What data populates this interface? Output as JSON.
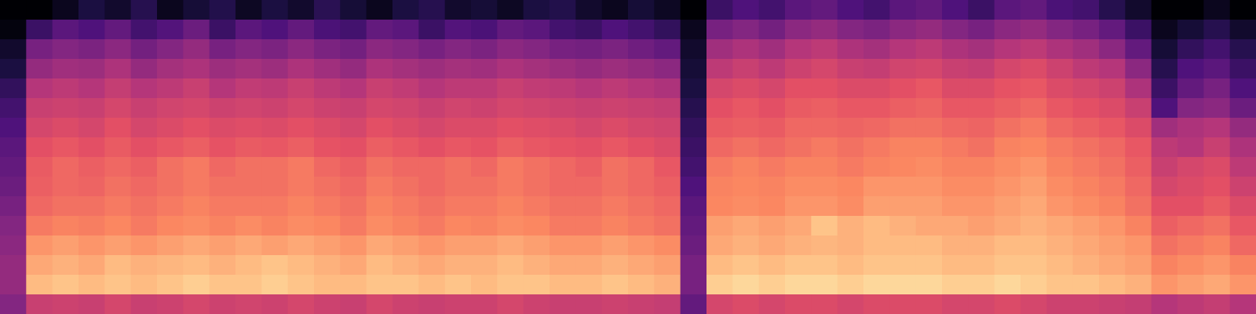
{
  "chart_data": {
    "type": "heatmap",
    "tick_labels": false,
    "zlim": [
      0,
      100
    ],
    "cells": [
      [
        0,
        0,
        5,
        12,
        8,
        15,
        5,
        10,
        14,
        6,
        12,
        8,
        16,
        10,
        5,
        12,
        15,
        8,
        10,
        6,
        12,
        14,
        8,
        5,
        10,
        6,
        0,
        20,
        25,
        22,
        28,
        30,
        25,
        22,
        28,
        30,
        25,
        20,
        28,
        30,
        24,
        22,
        15,
        8,
        0,
        0,
        5,
        0
      ],
      [
        2,
        20,
        28,
        25,
        30,
        22,
        26,
        32,
        20,
        28,
        25,
        30,
        24,
        22,
        30,
        28,
        20,
        26,
        24,
        30,
        28,
        22,
        20,
        25,
        22,
        18,
        5,
        35,
        38,
        34,
        40,
        42,
        38,
        36,
        40,
        42,
        38,
        35,
        40,
        42,
        38,
        35,
        30,
        20,
        5,
        10,
        15,
        8
      ],
      [
        8,
        35,
        38,
        36,
        40,
        34,
        38,
        42,
        35,
        38,
        36,
        40,
        36,
        34,
        40,
        38,
        35,
        38,
        36,
        40,
        38,
        35,
        34,
        36,
        33,
        30,
        8,
        45,
        48,
        45,
        50,
        52,
        48,
        46,
        50,
        52,
        48,
        46,
        50,
        52,
        48,
        45,
        40,
        30,
        10,
        18,
        22,
        15
      ],
      [
        12,
        42,
        45,
        44,
        48,
        42,
        46,
        48,
        44,
        46,
        44,
        48,
        45,
        42,
        48,
        46,
        44,
        46,
        45,
        48,
        46,
        44,
        42,
        44,
        42,
        40,
        10,
        52,
        55,
        52,
        56,
        58,
        55,
        54,
        57,
        58,
        55,
        54,
        58,
        60,
        56,
        52,
        50,
        40,
        15,
        25,
        28,
        20
      ],
      [
        18,
        50,
        52,
        50,
        54,
        50,
        52,
        55,
        50,
        53,
        52,
        55,
        52,
        50,
        55,
        53,
        50,
        52,
        52,
        55,
        53,
        52,
        50,
        52,
        50,
        48,
        12,
        58,
        60,
        58,
        62,
        62,
        60,
        60,
        62,
        64,
        60,
        60,
        63,
        64,
        60,
        58,
        56,
        48,
        20,
        30,
        35,
        25
      ],
      [
        22,
        55,
        56,
        55,
        58,
        55,
        57,
        58,
        56,
        57,
        56,
        58,
        56,
        55,
        58,
        57,
        55,
        57,
        56,
        58,
        57,
        56,
        55,
        56,
        55,
        54,
        15,
        62,
        64,
        62,
        65,
        66,
        64,
        64,
        66,
        67,
        64,
        64,
        66,
        68,
        64,
        62,
        60,
        55,
        25,
        38,
        40,
        32
      ],
      [
        25,
        58,
        60,
        58,
        62,
        58,
        60,
        62,
        60,
        61,
        60,
        62,
        60,
        58,
        62,
        60,
        58,
        60,
        60,
        62,
        61,
        60,
        58,
        60,
        58,
        57,
        18,
        65,
        66,
        65,
        68,
        68,
        67,
        68,
        70,
        70,
        68,
        67,
        70,
        72,
        68,
        66,
        64,
        60,
        45,
        48,
        50,
        42
      ],
      [
        28,
        62,
        64,
        62,
        65,
        62,
        64,
        66,
        63,
        65,
        64,
        66,
        63,
        62,
        66,
        64,
        62,
        64,
        63,
        66,
        64,
        63,
        62,
        64,
        62,
        60,
        20,
        68,
        70,
        68,
        70,
        72,
        70,
        72,
        74,
        74,
        72,
        70,
        74,
        75,
        72,
        70,
        68,
        64,
        52,
        50,
        55,
        48
      ],
      [
        30,
        65,
        68,
        66,
        68,
        66,
        70,
        72,
        68,
        70,
        70,
        72,
        68,
        66,
        70,
        68,
        68,
        70,
        68,
        72,
        70,
        68,
        66,
        70,
        68,
        64,
        22,
        72,
        74,
        72,
        74,
        74,
        72,
        74,
        75,
        76,
        74,
        74,
        76,
        78,
        74,
        72,
        70,
        66,
        55,
        58,
        60,
        52
      ],
      [
        32,
        66,
        68,
        67,
        70,
        68,
        70,
        72,
        70,
        70,
        70,
        72,
        70,
        68,
        72,
        70,
        68,
        70,
        70,
        72,
        70,
        68,
        68,
        70,
        68,
        66,
        25,
        74,
        75,
        74,
        76,
        76,
        75,
        78,
        78,
        78,
        76,
        76,
        78,
        80,
        76,
        74,
        72,
        68,
        58,
        60,
        62,
        56
      ],
      [
        35,
        68,
        70,
        70,
        72,
        70,
        72,
        74,
        72,
        72,
        72,
        74,
        72,
        70,
        74,
        72,
        70,
        72,
        72,
        74,
        72,
        70,
        70,
        72,
        70,
        68,
        28,
        75,
        76,
        75,
        78,
        78,
        76,
        80,
        80,
        80,
        78,
        78,
        80,
        82,
        78,
        76,
        74,
        70,
        62,
        62,
        65,
        60
      ],
      [
        38,
        72,
        74,
        73,
        75,
        72,
        75,
        76,
        74,
        76,
        74,
        76,
        75,
        72,
        76,
        74,
        72,
        75,
        74,
        76,
        75,
        72,
        72,
        74,
        72,
        70,
        30,
        80,
        82,
        80,
        82,
        88,
        84,
        86,
        84,
        82,
        82,
        80,
        82,
        84,
        82,
        80,
        78,
        74,
        66,
        68,
        70,
        64
      ],
      [
        40,
        78,
        80,
        78,
        80,
        78,
        80,
        82,
        80,
        82,
        80,
        82,
        80,
        78,
        82,
        80,
        78,
        80,
        80,
        82,
        80,
        78,
        78,
        80,
        78,
        76,
        32,
        82,
        84,
        82,
        84,
        85,
        84,
        86,
        86,
        86,
        84,
        84,
        86,
        86,
        84,
        82,
        80,
        78,
        70,
        72,
        74,
        68
      ],
      [
        42,
        82,
        84,
        82,
        86,
        84,
        85,
        86,
        84,
        86,
        88,
        86,
        84,
        82,
        86,
        84,
        82,
        84,
        84,
        86,
        84,
        82,
        82,
        84,
        82,
        80,
        35,
        86,
        88,
        86,
        88,
        88,
        86,
        88,
        88,
        88,
        86,
        86,
        88,
        88,
        86,
        84,
        82,
        80,
        74,
        76,
        78,
        74
      ],
      [
        42,
        86,
        88,
        86,
        88,
        86,
        88,
        90,
        88,
        88,
        90,
        88,
        86,
        86,
        88,
        88,
        86,
        88,
        86,
        88,
        88,
        86,
        86,
        88,
        86,
        84,
        35,
        90,
        92,
        90,
        92,
        92,
        90,
        92,
        92,
        92,
        90,
        90,
        92,
        90,
        88,
        88,
        86,
        84,
        78,
        80,
        82,
        78
      ],
      [
        38,
        55,
        56,
        55,
        58,
        55,
        56,
        58,
        56,
        57,
        56,
        58,
        56,
        55,
        58,
        56,
        55,
        56,
        56,
        58,
        56,
        55,
        55,
        56,
        55,
        54,
        30,
        58,
        60,
        58,
        60,
        60,
        58,
        60,
        60,
        60,
        58,
        58,
        60,
        58,
        56,
        56,
        55,
        54,
        50,
        52,
        54,
        50
      ]
    ]
  }
}
